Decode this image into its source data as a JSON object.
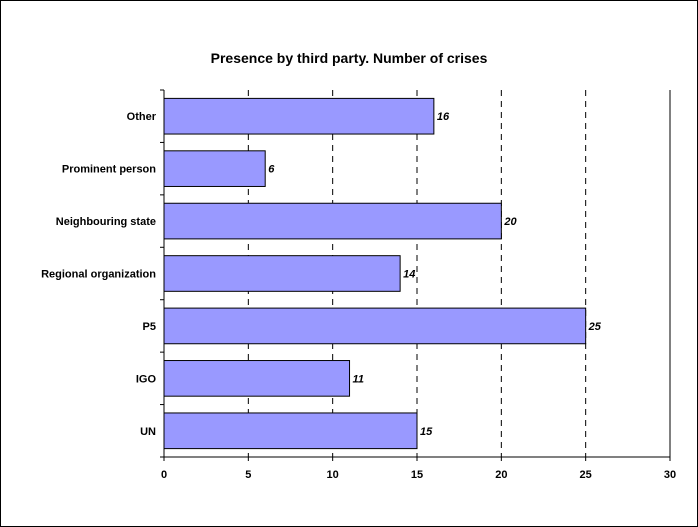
{
  "chart_data": {
    "type": "bar",
    "orientation": "horizontal",
    "title": "Presence by third party. Number of crises",
    "xlabel": "",
    "ylabel": "",
    "categories": [
      "Other",
      "Prominent person",
      "Neighbouring state",
      "Regional organization",
      "P5",
      "IGO",
      "UN"
    ],
    "values": [
      16,
      6,
      20,
      14,
      25,
      11,
      15
    ],
    "xlim": [
      0,
      30
    ],
    "xticks": [
      0,
      5,
      10,
      15,
      20,
      25,
      30
    ],
    "grid": "vertical-dashed",
    "bar_color": "#9999ff",
    "data_labels": true
  }
}
